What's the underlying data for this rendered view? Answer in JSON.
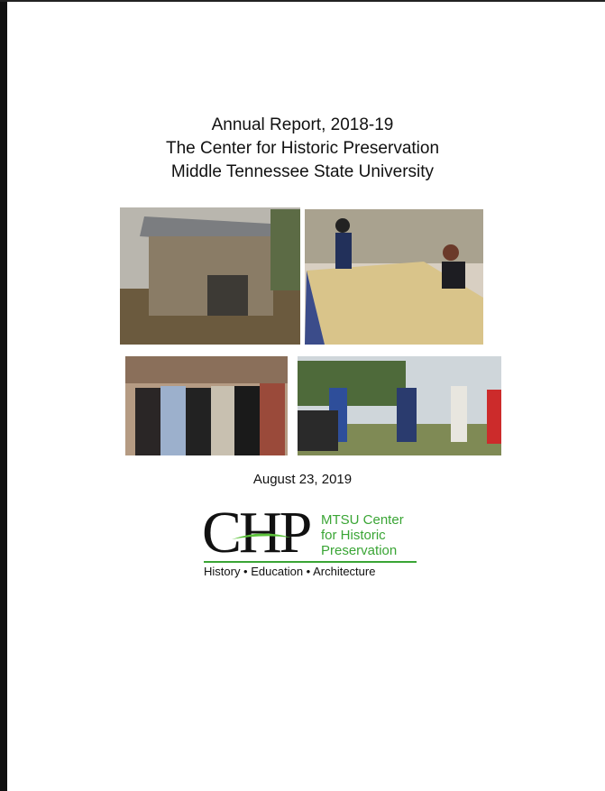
{
  "header": {
    "lines": [
      "Annual Report, 2018-19",
      "The Center for Historic Preservation",
      "Middle Tennessee State University"
    ]
  },
  "date": "August 23, 2019",
  "logo": {
    "mark": "CHP",
    "name_lines": [
      "MTSU Center",
      "for Historic",
      "Preservation"
    ],
    "tagline": "History • Education • Architecture"
  }
}
